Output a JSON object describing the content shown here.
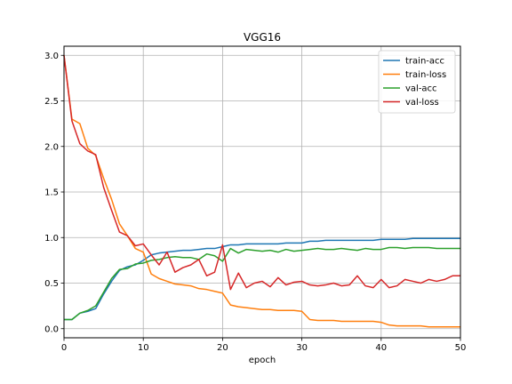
{
  "chart_data": {
    "type": "line",
    "title": "VGG16",
    "xlabel": "epoch",
    "ylabel": "",
    "xlim": [
      0,
      50
    ],
    "ylim": [
      -0.1,
      3.1
    ],
    "xticks": [
      0,
      10,
      20,
      30,
      40,
      50
    ],
    "yticks": [
      0.0,
      0.5,
      1.0,
      1.5,
      2.0,
      2.5,
      3.0
    ],
    "ytick_labels": [
      "0.0",
      "0.5",
      "1.0",
      "1.5",
      "2.0",
      "2.5",
      "3.0"
    ],
    "grid": true,
    "legend_position": "top-right",
    "x": [
      0,
      1,
      2,
      3,
      4,
      5,
      6,
      7,
      8,
      9,
      10,
      11,
      12,
      13,
      14,
      15,
      16,
      17,
      18,
      19,
      20,
      21,
      22,
      23,
      24,
      25,
      26,
      27,
      28,
      29,
      30,
      31,
      32,
      33,
      34,
      35,
      36,
      37,
      38,
      39,
      40,
      41,
      42,
      43,
      44,
      45,
      46,
      47,
      48,
      49,
      50
    ],
    "series": [
      {
        "name": "train-acc",
        "color": "#1f77b4",
        "values": [
          0.1,
          0.1,
          0.17,
          0.19,
          0.22,
          0.38,
          0.52,
          0.64,
          0.68,
          0.7,
          0.75,
          0.81,
          0.83,
          0.84,
          0.85,
          0.86,
          0.86,
          0.87,
          0.88,
          0.88,
          0.9,
          0.92,
          0.92,
          0.93,
          0.93,
          0.93,
          0.93,
          0.93,
          0.94,
          0.94,
          0.94,
          0.96,
          0.96,
          0.97,
          0.97,
          0.97,
          0.97,
          0.97,
          0.97,
          0.97,
          0.98,
          0.98,
          0.98,
          0.98,
          0.99,
          0.99,
          0.99,
          0.99,
          0.99,
          0.99,
          0.99
        ]
      },
      {
        "name": "train-loss",
        "color": "#ff7f0e",
        "values": [
          3.0,
          2.3,
          2.25,
          1.98,
          1.9,
          1.65,
          1.42,
          1.15,
          1.02,
          0.88,
          0.84,
          0.6,
          0.55,
          0.52,
          0.49,
          0.48,
          0.47,
          0.44,
          0.43,
          0.41,
          0.39,
          0.26,
          0.24,
          0.23,
          0.22,
          0.21,
          0.21,
          0.2,
          0.2,
          0.2,
          0.19,
          0.1,
          0.09,
          0.09,
          0.09,
          0.08,
          0.08,
          0.08,
          0.08,
          0.08,
          0.07,
          0.04,
          0.03,
          0.03,
          0.03,
          0.03,
          0.02,
          0.02,
          0.02,
          0.02,
          0.02
        ]
      },
      {
        "name": "val-acc",
        "color": "#2ca02c",
        "values": [
          0.1,
          0.1,
          0.17,
          0.2,
          0.25,
          0.4,
          0.55,
          0.65,
          0.66,
          0.71,
          0.72,
          0.75,
          0.76,
          0.78,
          0.79,
          0.78,
          0.78,
          0.76,
          0.82,
          0.8,
          0.74,
          0.88,
          0.83,
          0.87,
          0.86,
          0.85,
          0.86,
          0.84,
          0.87,
          0.85,
          0.86,
          0.87,
          0.88,
          0.87,
          0.87,
          0.88,
          0.87,
          0.86,
          0.88,
          0.87,
          0.87,
          0.89,
          0.89,
          0.88,
          0.89,
          0.89,
          0.89,
          0.88,
          0.88,
          0.88,
          0.88
        ]
      },
      {
        "name": "val-loss",
        "color": "#d62728",
        "values": [
          3.0,
          2.28,
          2.03,
          1.95,
          1.91,
          1.55,
          1.3,
          1.06,
          1.02,
          0.91,
          0.93,
          0.81,
          0.7,
          0.84,
          0.62,
          0.67,
          0.7,
          0.76,
          0.58,
          0.62,
          0.92,
          0.43,
          0.61,
          0.45,
          0.5,
          0.52,
          0.46,
          0.56,
          0.48,
          0.51,
          0.52,
          0.48,
          0.47,
          0.48,
          0.5,
          0.47,
          0.48,
          0.58,
          0.47,
          0.45,
          0.54,
          0.45,
          0.47,
          0.54,
          0.52,
          0.5,
          0.54,
          0.52,
          0.54,
          0.58,
          0.58
        ]
      }
    ]
  }
}
